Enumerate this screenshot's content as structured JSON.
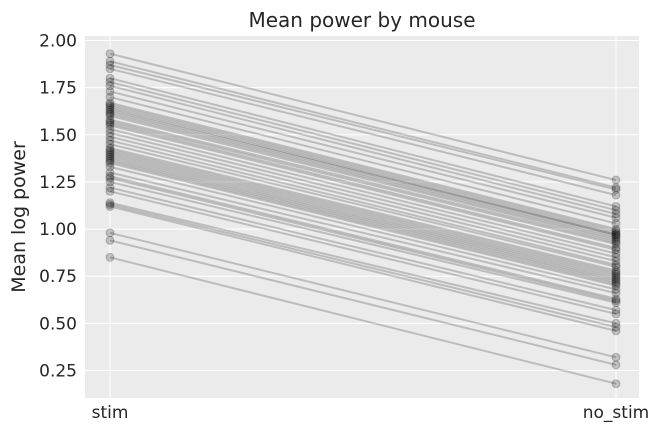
{
  "chart_data": {
    "type": "line",
    "title": "Mean power by mouse",
    "xlabel": "",
    "ylabel": "Mean log power",
    "categories": [
      "stim",
      "no_stim"
    ],
    "ylim": [
      0.1,
      2.05
    ],
    "yticks": [
      "0.25",
      "0.50",
      "0.75",
      "1.00",
      "1.25",
      "1.50",
      "1.75",
      "2.00"
    ],
    "grid": true,
    "background": "#ebebeb",
    "line_color": "#000000",
    "pairs": [
      [
        1.93,
        1.26
      ],
      [
        1.89,
        1.22
      ],
      [
        1.87,
        1.21
      ],
      [
        1.85,
        1.18
      ],
      [
        1.8,
        1.12
      ],
      [
        1.78,
        1.1
      ],
      [
        1.76,
        1.08
      ],
      [
        1.73,
        1.06
      ],
      [
        1.7,
        1.03
      ],
      [
        1.67,
        1.0
      ],
      [
        1.66,
        0.99
      ],
      [
        1.65,
        0.98
      ],
      [
        1.64,
        0.97
      ],
      [
        1.63,
        0.97
      ],
      [
        1.62,
        0.96
      ],
      [
        1.61,
        0.95
      ],
      [
        1.6,
        0.94
      ],
      [
        1.58,
        0.93
      ],
      [
        1.57,
        0.92
      ],
      [
        1.56,
        0.9
      ],
      [
        1.55,
        0.89
      ],
      [
        1.53,
        0.87
      ],
      [
        1.51,
        0.85
      ],
      [
        1.49,
        0.83
      ],
      [
        1.47,
        0.81
      ],
      [
        1.45,
        0.8
      ],
      [
        1.43,
        0.78
      ],
      [
        1.42,
        0.77
      ],
      [
        1.41,
        0.76
      ],
      [
        1.4,
        0.75
      ],
      [
        1.39,
        0.74
      ],
      [
        1.38,
        0.73
      ],
      [
        1.37,
        0.72
      ],
      [
        1.36,
        0.71
      ],
      [
        1.35,
        0.7
      ],
      [
        1.33,
        0.68
      ],
      [
        1.3,
        0.66
      ],
      [
        1.28,
        0.63
      ],
      [
        1.27,
        0.62
      ],
      [
        1.25,
        0.61
      ],
      [
        1.22,
        0.57
      ],
      [
        1.2,
        0.55
      ],
      [
        1.14,
        0.5
      ],
      [
        1.13,
        0.48
      ],
      [
        1.12,
        0.46
      ],
      [
        0.98,
        0.32
      ],
      [
        0.94,
        0.28
      ],
      [
        0.85,
        0.18
      ]
    ]
  }
}
